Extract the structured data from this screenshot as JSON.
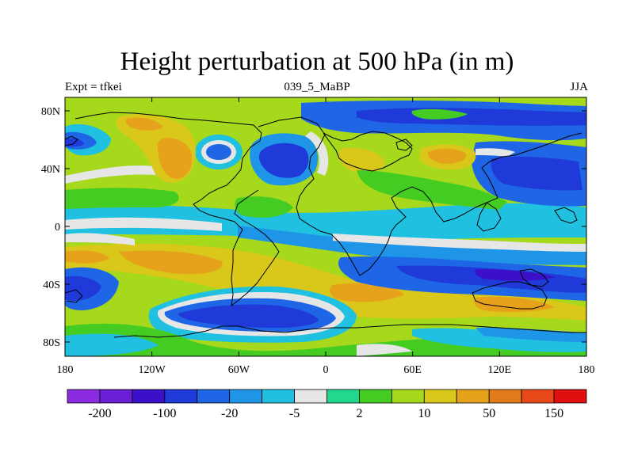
{
  "figure": {
    "title": "Height perturbation at 500 hPa (in m)",
    "left_label": "Expt = tfkei",
    "center_label": "039_5_MaBP",
    "right_label": "JJA"
  },
  "map": {
    "lat_ticks": [
      "80N",
      "40N",
      "0",
      "40S",
      "80S"
    ],
    "lon_ticks": [
      "180",
      "120W",
      "60W",
      "0",
      "60E",
      "120E",
      "180"
    ]
  },
  "colorbar": {
    "colors": [
      "#8a2be2",
      "#6a1fd6",
      "#3b10c8",
      "#1f3ad8",
      "#1f66e6",
      "#1f95e8",
      "#20c0e0",
      "#e6e6e6",
      "#21d98c",
      "#44cc22",
      "#a6d81c",
      "#d9c81a",
      "#e6a21a",
      "#e07a1a",
      "#ea4a1a",
      "#e01010"
    ],
    "labels": [
      "-200",
      "-100",
      "-20",
      "-5",
      "2",
      "10",
      "50",
      "150"
    ]
  }
}
